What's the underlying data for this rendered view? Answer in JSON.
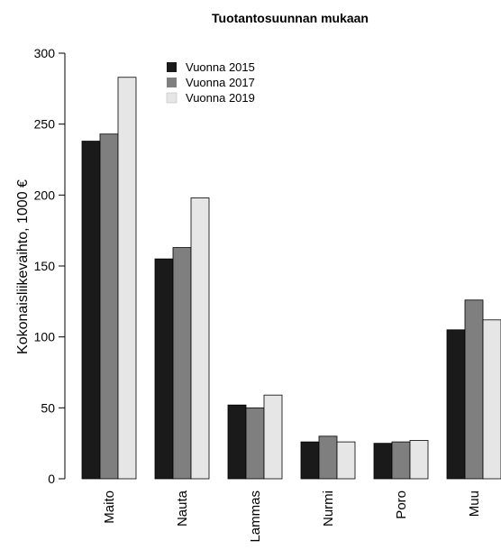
{
  "chart_data": {
    "type": "bar",
    "title": "Tuotantosuunnan mukaan",
    "xlabel": "",
    "ylabel": "Kokonaisliikevaihto, 1000 €",
    "ylim": [
      0,
      300
    ],
    "yticks": [
      0,
      50,
      100,
      150,
      200,
      250,
      300
    ],
    "categories": [
      "Maito",
      "Nauta",
      "Lammas",
      "Nurmi",
      "Poro",
      "Muu"
    ],
    "series": [
      {
        "name": "Vuonna 2015",
        "color": "#1a1a1a",
        "values": [
          238,
          155,
          52,
          26,
          25,
          105
        ]
      },
      {
        "name": "Vuonna 2017",
        "color": "#7f7f7f",
        "values": [
          243,
          163,
          50,
          30,
          26,
          126
        ]
      },
      {
        "name": "Vuonna 2019",
        "color": "#e6e6e6",
        "values": [
          283,
          198,
          59,
          26,
          27,
          112
        ]
      }
    ],
    "legend_position": "top-left",
    "grid": false
  }
}
